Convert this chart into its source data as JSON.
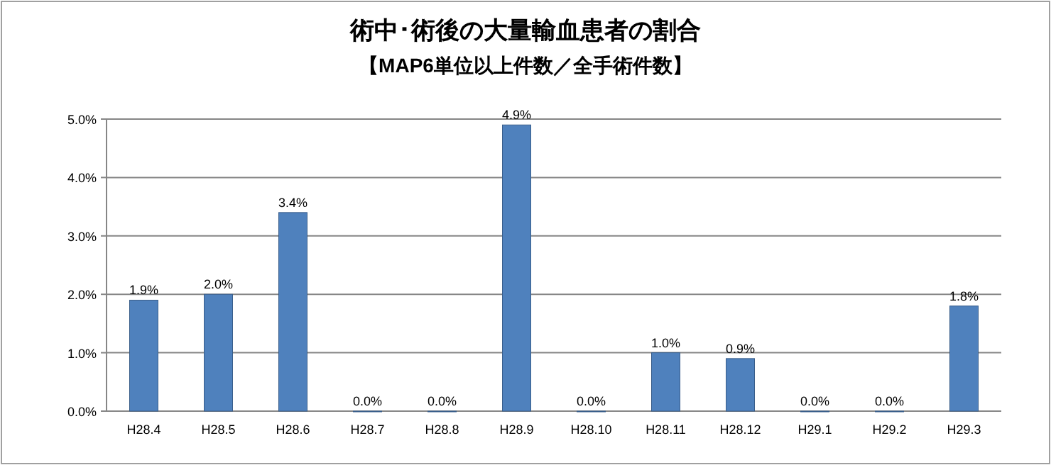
{
  "chart_data": {
    "type": "bar",
    "title": "術中･術後の大量輸血患者の割合",
    "subtitle": "【MAP6単位以上件数／全手術件数】",
    "categories": [
      "H28.4",
      "H28.5",
      "H28.6",
      "H28.7",
      "H28.8",
      "H28.9",
      "H28.10",
      "H28.11",
      "H28.12",
      "H29.1",
      "H29.2",
      "H29.3"
    ],
    "values": [
      1.9,
      2.0,
      3.4,
      0,
      0,
      4.9,
      0,
      1.0,
      0.9,
      0,
      0,
      1.8
    ],
    "value_labels": [
      "1.9%",
      "2.0%",
      "3.4%",
      "0.0%",
      "0.0%",
      "4.9%",
      "0.0%",
      "1.0%",
      "0.9%",
      "0.0%",
      "0.0%",
      "1.8%"
    ],
    "color": "#4f81bd",
    "ylim": [
      0,
      5
    ],
    "yticks": [
      {
        "value": 0,
        "label": "0.0%"
      },
      {
        "value": 1,
        "label": "1.0%"
      },
      {
        "value": 2,
        "label": "2.0%"
      },
      {
        "value": 3,
        "label": "3.0%"
      },
      {
        "value": 4,
        "label": "4.0%"
      },
      {
        "value": 5,
        "label": "5.0%"
      }
    ],
    "grid": "y"
  }
}
